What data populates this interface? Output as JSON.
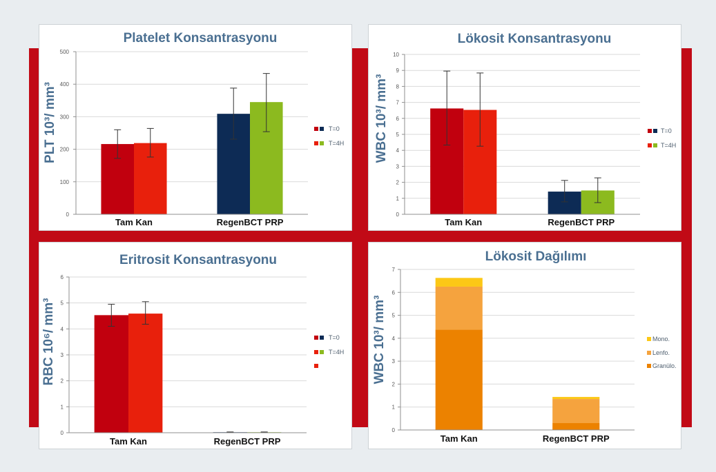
{
  "page": {
    "background": "#e9edf0",
    "frame_color": "#c10a16",
    "panel_color": "#ffffff",
    "title_color": "#4a6f91"
  },
  "chart_data": [
    {
      "type": "bar",
      "title": "Platelet Konsantrasyonu",
      "ylabel": "PLT 10³/ mm³",
      "categories": [
        "Tam Kan",
        "RegenBCT PRP"
      ],
      "ylim": [
        0,
        500
      ],
      "yticks": [
        0,
        100,
        200,
        300,
        400,
        500
      ],
      "grid": true,
      "legend": "right",
      "series": [
        {
          "name": "T=0",
          "values": [
            216,
            309
          ],
          "error_low": [
            172,
            231
          ],
          "error_high": [
            260,
            388
          ],
          "colors": [
            "#c1000e",
            "#0d2b55"
          ]
        },
        {
          "name": "T=4H",
          "values": [
            219,
            345
          ],
          "error_low": [
            176,
            254
          ],
          "error_high": [
            264,
            433
          ],
          "colors": [
            "#e8200c",
            "#8cba1f"
          ]
        }
      ]
    },
    {
      "type": "bar",
      "title": "Lökosit Konsantrasyonu",
      "ylabel": "WBC 10³/ mm³",
      "categories": [
        "Tam Kan",
        "RegenBCT PRP"
      ],
      "ylim": [
        0,
        10
      ],
      "yticks": [
        0,
        1,
        2,
        3,
        4,
        5,
        6,
        7,
        8,
        9,
        10
      ],
      "grid": true,
      "legend": "right",
      "series": [
        {
          "name": "T=0",
          "values": [
            6.62,
            1.42
          ],
          "error_low": [
            4.33,
            0.78
          ],
          "error_high": [
            8.96,
            2.12
          ],
          "colors": [
            "#c1000e",
            "#0d2b55"
          ]
        },
        {
          "name": "T=4H",
          "values": [
            6.53,
            1.49
          ],
          "error_low": [
            4.26,
            0.73
          ],
          "error_high": [
            8.84,
            2.28
          ],
          "colors": [
            "#e8200c",
            "#8cba1f"
          ]
        }
      ]
    },
    {
      "type": "bar",
      "title": "Eritrosit Konsantrasyonu",
      "ylabel": "RBC 10⁶/ mm³",
      "categories": [
        "Tam Kan",
        "RegenBCT PRP"
      ],
      "ylim": [
        0,
        6
      ],
      "yticks": [
        0,
        1,
        2,
        3,
        4,
        5,
        6
      ],
      "grid": true,
      "legend": "right",
      "series": [
        {
          "name": "T=0",
          "values": [
            4.53,
            0.02
          ],
          "error_low": [
            4.1,
            0.01
          ],
          "error_high": [
            4.95,
            0.03
          ],
          "colors": [
            "#c1000e",
            "#0d2b55"
          ]
        },
        {
          "name": "T=4H",
          "values": [
            4.59,
            0.02
          ],
          "error_low": [
            4.18,
            0.01
          ],
          "error_high": [
            5.05,
            0.03
          ],
          "colors": [
            "#e8200c",
            "#8cba1f"
          ]
        }
      ],
      "legend_extra_swatches": [
        [
          "#e8200c"
        ]
      ]
    },
    {
      "type": "bar",
      "stacked": true,
      "title": "Lökosit Dağılımı",
      "ylabel": "WBC 10³/ mm³",
      "categories": [
        "Tam Kan",
        "RegenBCT PRP"
      ],
      "ylim": [
        0,
        7
      ],
      "yticks": [
        0,
        1,
        2,
        3,
        4,
        5,
        6,
        7
      ],
      "grid": true,
      "legend": "right",
      "series": [
        {
          "name": "Granülo.",
          "values": [
            4.38,
            0.3
          ],
          "color": "#ec8200"
        },
        {
          "name": "Lenfo.",
          "values": [
            1.87,
            1.05
          ],
          "color": "#f5a33e"
        },
        {
          "name": "Mono.",
          "values": [
            0.38,
            0.09
          ],
          "color": "#fcc816"
        }
      ]
    }
  ]
}
